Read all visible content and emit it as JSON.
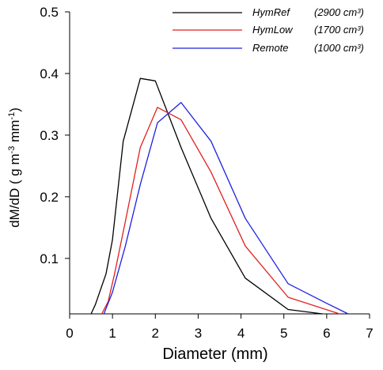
{
  "chart_data": {
    "type": "line",
    "xlabel": "Diameter (mm)",
    "ylabel": {
      "main": "dM/dD ( g m",
      "sup1": "-3",
      "mid": " mm",
      "sup2": "-1",
      "end": ")"
    },
    "xlim": [
      0,
      7
    ],
    "ylim": [
      0.01,
      0.5
    ],
    "xticks": [
      "0",
      "1",
      "2",
      "3",
      "4",
      "5",
      "6",
      "7"
    ],
    "yticks": [
      "0.1",
      "0.2",
      "0.3",
      "0.4",
      "0.5"
    ],
    "legend_position": "top-right",
    "grid": false,
    "series": [
      {
        "name": "HymRef",
        "note": "(2900 cm³)",
        "color": "#000000",
        "points": [
          [
            0.5,
            0.01
          ],
          [
            0.6,
            0.025
          ],
          [
            0.7,
            0.045
          ],
          [
            0.85,
            0.075
          ],
          [
            1.0,
            0.13
          ],
          [
            1.25,
            0.29
          ],
          [
            1.65,
            0.392
          ],
          [
            2.0,
            0.388
          ],
          [
            2.6,
            0.28
          ],
          [
            3.3,
            0.165
          ],
          [
            4.1,
            0.068
          ],
          [
            5.1,
            0.017
          ],
          [
            5.9,
            0.01
          ]
        ]
      },
      {
        "name": "HymLow",
        "note": "(1700 cm³)",
        "color": "#e02020",
        "points": [
          [
            0.75,
            0.01
          ],
          [
            0.9,
            0.03
          ],
          [
            1.05,
            0.075
          ],
          [
            1.3,
            0.16
          ],
          [
            1.65,
            0.28
          ],
          [
            2.05,
            0.345
          ],
          [
            2.6,
            0.325
          ],
          [
            3.3,
            0.24
          ],
          [
            4.1,
            0.12
          ],
          [
            5.1,
            0.037
          ],
          [
            6.3,
            0.01
          ]
        ]
      },
      {
        "name": "Remote",
        "note": "(1000 cm³)",
        "color": "#2020e0",
        "points": [
          [
            0.8,
            0.01
          ],
          [
            1.0,
            0.045
          ],
          [
            1.3,
            0.12
          ],
          [
            1.65,
            0.22
          ],
          [
            2.05,
            0.32
          ],
          [
            2.6,
            0.353
          ],
          [
            3.3,
            0.29
          ],
          [
            4.1,
            0.165
          ],
          [
            5.1,
            0.059
          ],
          [
            6.0,
            0.027
          ],
          [
            6.5,
            0.01
          ]
        ]
      }
    ]
  }
}
